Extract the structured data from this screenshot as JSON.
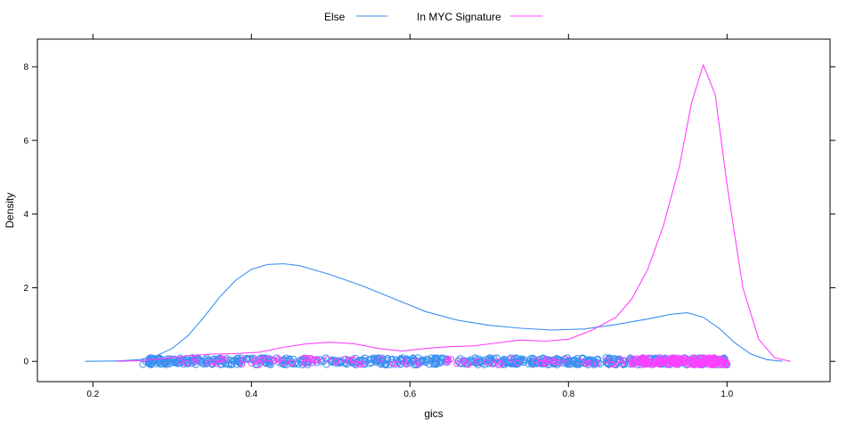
{
  "chart_data": {
    "type": "line",
    "title": "",
    "xlabel": "gics",
    "ylabel": "Density",
    "xlim": [
      0.13,
      1.13
    ],
    "ylim": [
      -0.55,
      8.75
    ],
    "x_ticks": [
      "0.2",
      "0.4",
      "0.6",
      "0.8",
      "1.0"
    ],
    "y_ticks": [
      "0",
      "2",
      "4",
      "6",
      "8"
    ],
    "grid": false,
    "legend_position": "top",
    "series": [
      {
        "name": "Else",
        "color": "#3b8ff0",
        "x": [
          0.19,
          0.23,
          0.26,
          0.28,
          0.3,
          0.32,
          0.34,
          0.36,
          0.38,
          0.4,
          0.42,
          0.44,
          0.46,
          0.48,
          0.5,
          0.54,
          0.58,
          0.62,
          0.66,
          0.7,
          0.74,
          0.78,
          0.82,
          0.86,
          0.9,
          0.93,
          0.95,
          0.97,
          0.99,
          1.01,
          1.03,
          1.05,
          1.07
        ],
        "y": [
          0.0,
          0.01,
          0.05,
          0.15,
          0.35,
          0.7,
          1.2,
          1.75,
          2.2,
          2.5,
          2.63,
          2.65,
          2.6,
          2.48,
          2.35,
          2.05,
          1.7,
          1.35,
          1.12,
          0.98,
          0.9,
          0.85,
          0.88,
          1.0,
          1.15,
          1.28,
          1.32,
          1.2,
          0.9,
          0.5,
          0.2,
          0.05,
          0.0
        ]
      },
      {
        "name": "In MYC Signature",
        "color": "#ff40ff",
        "x": [
          0.23,
          0.26,
          0.29,
          0.32,
          0.35,
          0.38,
          0.41,
          0.44,
          0.47,
          0.5,
          0.53,
          0.56,
          0.59,
          0.62,
          0.65,
          0.68,
          0.71,
          0.74,
          0.77,
          0.8,
          0.83,
          0.86,
          0.88,
          0.9,
          0.92,
          0.94,
          0.955,
          0.97,
          0.985,
          1.0,
          1.02,
          1.04,
          1.06,
          1.08
        ],
        "y": [
          0.0,
          0.02,
          0.08,
          0.15,
          0.2,
          0.21,
          0.25,
          0.38,
          0.48,
          0.52,
          0.48,
          0.35,
          0.28,
          0.35,
          0.4,
          0.42,
          0.5,
          0.58,
          0.55,
          0.6,
          0.85,
          1.2,
          1.7,
          2.5,
          3.7,
          5.3,
          7.0,
          8.05,
          7.25,
          4.8,
          2.0,
          0.6,
          0.1,
          0.0
        ]
      }
    ],
    "rug": [
      {
        "name": "Else",
        "color": "#3b8ff0",
        "range": [
          0.27,
          1.0
        ],
        "y": 0
      },
      {
        "name": "In MYC Signature",
        "color": "#ff40ff",
        "range": [
          0.31,
          1.0
        ],
        "y": 0
      }
    ]
  }
}
